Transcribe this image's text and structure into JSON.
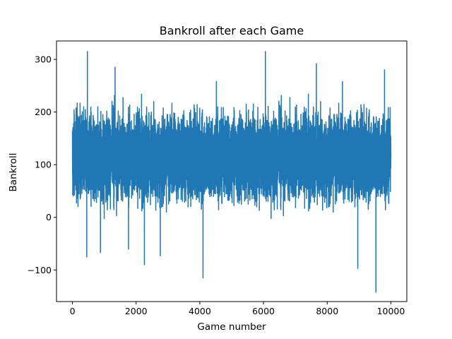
{
  "chart_data": {
    "type": "line",
    "title": "Bankroll after each Game",
    "xlabel": "Game number",
    "ylabel": "Bankroll",
    "xlim": [
      -500,
      10500
    ],
    "ylim": [
      -160,
      335
    ],
    "xticks": [
      0,
      2000,
      4000,
      6000,
      8000,
      10000
    ],
    "xtick_labels": [
      "0",
      "2000",
      "4000",
      "6000",
      "8000",
      "10000"
    ],
    "yticks": [
      -100,
      0,
      100,
      200,
      300
    ],
    "ytick_labels": [
      "−100",
      "0",
      "100",
      "200",
      "300"
    ],
    "grid": false,
    "legend": "none",
    "series": [
      {
        "color": "#1f77b4",
        "x_range": [
          0,
          10000
        ],
        "n_points": 10000,
        "typical_range": [
          20,
          210
        ],
        "center": 115,
        "notable_points": [
          {
            "x": 470,
            "y": 315
          },
          {
            "x": 6060,
            "y": 315
          },
          {
            "x": 4100,
            "y": -115
          },
          {
            "x": 9530,
            "y": -142
          },
          {
            "x": 8960,
            "y": -97
          },
          {
            "x": 2260,
            "y": -90
          },
          {
            "x": 450,
            "y": -75
          },
          {
            "x": 2760,
            "y": -73
          },
          {
            "x": 1760,
            "y": -60
          },
          {
            "x": 880,
            "y": -67
          },
          {
            "x": 7660,
            "y": 292
          },
          {
            "x": 9800,
            "y": 280
          },
          {
            "x": 1340,
            "y": 285
          },
          {
            "x": 4520,
            "y": 258
          },
          {
            "x": 8480,
            "y": 258
          }
        ]
      }
    ]
  }
}
